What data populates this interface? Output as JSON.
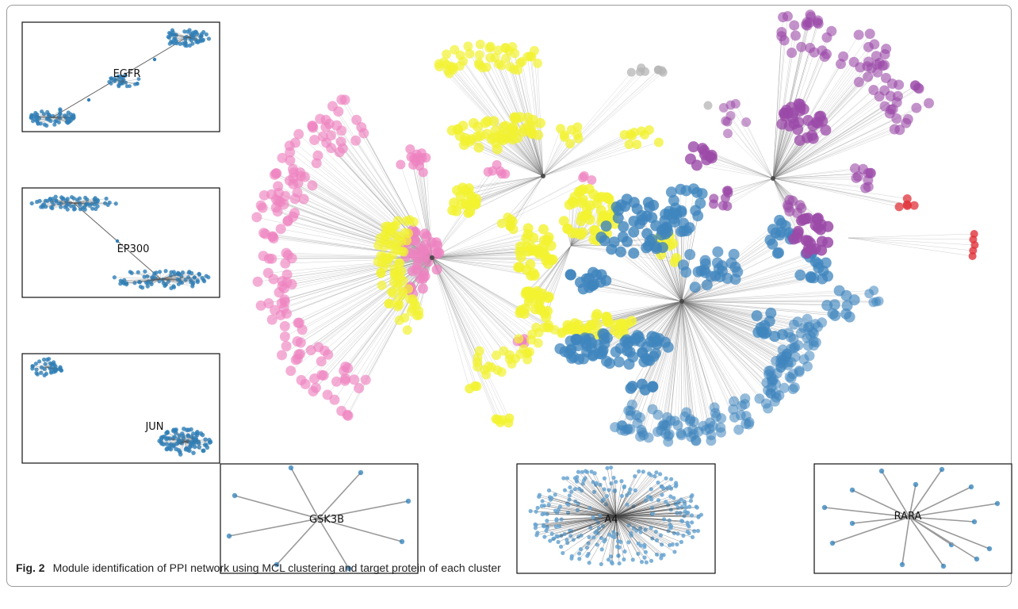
{
  "caption": {
    "figure_label": "Fig. 2",
    "text": "Module identification of PPI network using MCL clustering and target protein of each cluster"
  },
  "insets": [
    {
      "id": "egfr",
      "label": "EGFR"
    },
    {
      "id": "ep300",
      "label": "EP300"
    },
    {
      "id": "jun",
      "label": "JUN"
    },
    {
      "id": "gsk3b",
      "label": "GSK3B"
    },
    {
      "id": "a4",
      "label": "A4"
    },
    {
      "id": "rara",
      "label": "RARA"
    }
  ],
  "clusters": [
    {
      "name": "pink",
      "color": "#ee82c0"
    },
    {
      "name": "yellow",
      "color": "#f2f230"
    },
    {
      "name": "blue",
      "color": "#3f85bd"
    },
    {
      "name": "purple",
      "color": "#9b4aa8"
    },
    {
      "name": "red",
      "color": "#e0333a"
    },
    {
      "name": "gray",
      "color": "#b5b5b5"
    }
  ],
  "inset_node_color": "#2f7fb8"
}
